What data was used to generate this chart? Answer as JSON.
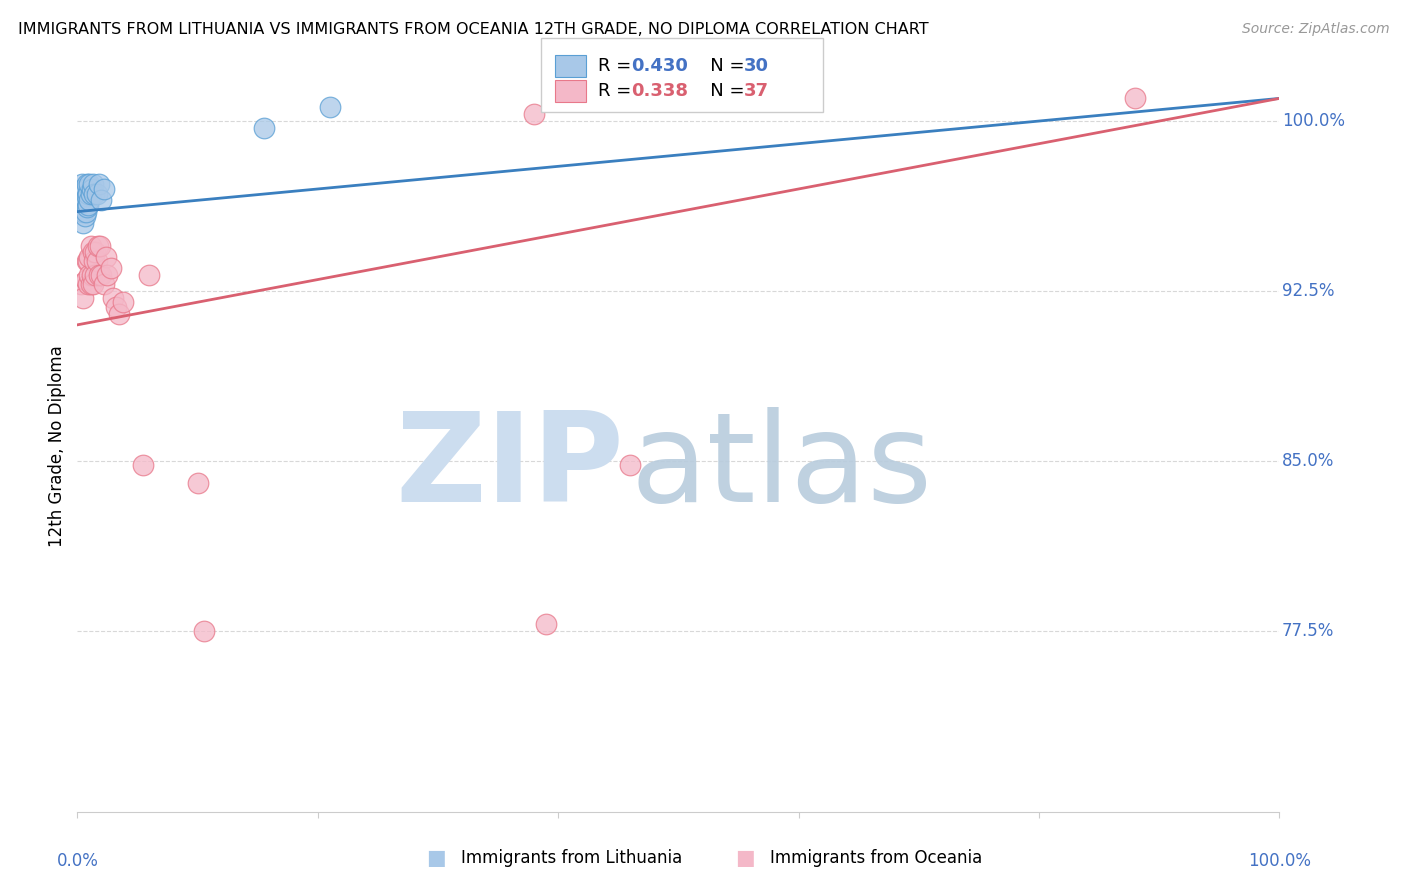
{
  "title": "IMMIGRANTS FROM LITHUANIA VS IMMIGRANTS FROM OCEANIA 12TH GRADE, NO DIPLOMA CORRELATION CHART",
  "source": "Source: ZipAtlas.com",
  "ylabel": "12th Grade, No Diploma",
  "blue_label": "Immigrants from Lithuania",
  "pink_label": "Immigrants from Oceania",
  "blue_color": "#a8c8e8",
  "pink_color": "#f4b8c8",
  "blue_edge_color": "#5a9fd4",
  "pink_edge_color": "#e8788a",
  "blue_line_color": "#3a7fbf",
  "pink_line_color": "#d96070",
  "legend_R_blue": "0.430",
  "legend_N_blue": "30",
  "legend_R_pink": "0.338",
  "legend_N_pink": "37",
  "blue_label_color": "#4472c4",
  "pink_label_color": "#d96070",
  "right_tick_color": "#4472c4",
  "xlim": [
    0.0,
    1.0
  ],
  "ylim": [
    0.695,
    1.018
  ],
  "yticks": [
    0.775,
    0.85,
    0.925,
    1.0
  ],
  "ytick_labels": [
    "77.5%",
    "85.0%",
    "92.5%",
    "100.0%"
  ],
  "blue_scatter_x": [
    0.004,
    0.004,
    0.004,
    0.005,
    0.005,
    0.005,
    0.005,
    0.006,
    0.006,
    0.006,
    0.007,
    0.007,
    0.007,
    0.008,
    0.008,
    0.008,
    0.009,
    0.009,
    0.01,
    0.01,
    0.011,
    0.012,
    0.013,
    0.014,
    0.016,
    0.018,
    0.02,
    0.022,
    0.155,
    0.21
  ],
  "blue_scatter_y": [
    0.964,
    0.968,
    0.972,
    0.955,
    0.96,
    0.965,
    0.97,
    0.958,
    0.963,
    0.968,
    0.96,
    0.965,
    0.97,
    0.962,
    0.967,
    0.972,
    0.963,
    0.968,
    0.965,
    0.972,
    0.968,
    0.97,
    0.972,
    0.968,
    0.968,
    0.972,
    0.965,
    0.97,
    0.997,
    1.006
  ],
  "pink_scatter_x": [
    0.003,
    0.005,
    0.007,
    0.008,
    0.009,
    0.009,
    0.01,
    0.01,
    0.011,
    0.011,
    0.012,
    0.013,
    0.013,
    0.014,
    0.015,
    0.015,
    0.016,
    0.017,
    0.018,
    0.019,
    0.02,
    0.022,
    0.024,
    0.025,
    0.028,
    0.03,
    0.032,
    0.035,
    0.038,
    0.055,
    0.06,
    0.1,
    0.105,
    0.38,
    0.39,
    0.46,
    0.88
  ],
  "pink_scatter_y": [
    0.928,
    0.922,
    0.93,
    0.938,
    0.928,
    0.938,
    0.932,
    0.94,
    0.928,
    0.945,
    0.932,
    0.928,
    0.942,
    0.938,
    0.932,
    0.942,
    0.938,
    0.945,
    0.932,
    0.945,
    0.932,
    0.928,
    0.94,
    0.932,
    0.935,
    0.922,
    0.918,
    0.915,
    0.92,
    0.848,
    0.932,
    0.84,
    0.775,
    1.003,
    0.778,
    0.848,
    1.01
  ],
  "blue_line_x0": 0.0,
  "blue_line_x1": 1.0,
  "blue_line_y0": 0.96,
  "blue_line_y1": 1.01,
  "pink_line_x0": 0.0,
  "pink_line_x1": 1.0,
  "pink_line_y0": 0.91,
  "pink_line_y1": 1.01,
  "watermark_zip_color": "#ccddef",
  "watermark_atlas_color": "#b8ccdd",
  "grid_color": "#d8d8d8",
  "bottom_spine_color": "#cccccc"
}
